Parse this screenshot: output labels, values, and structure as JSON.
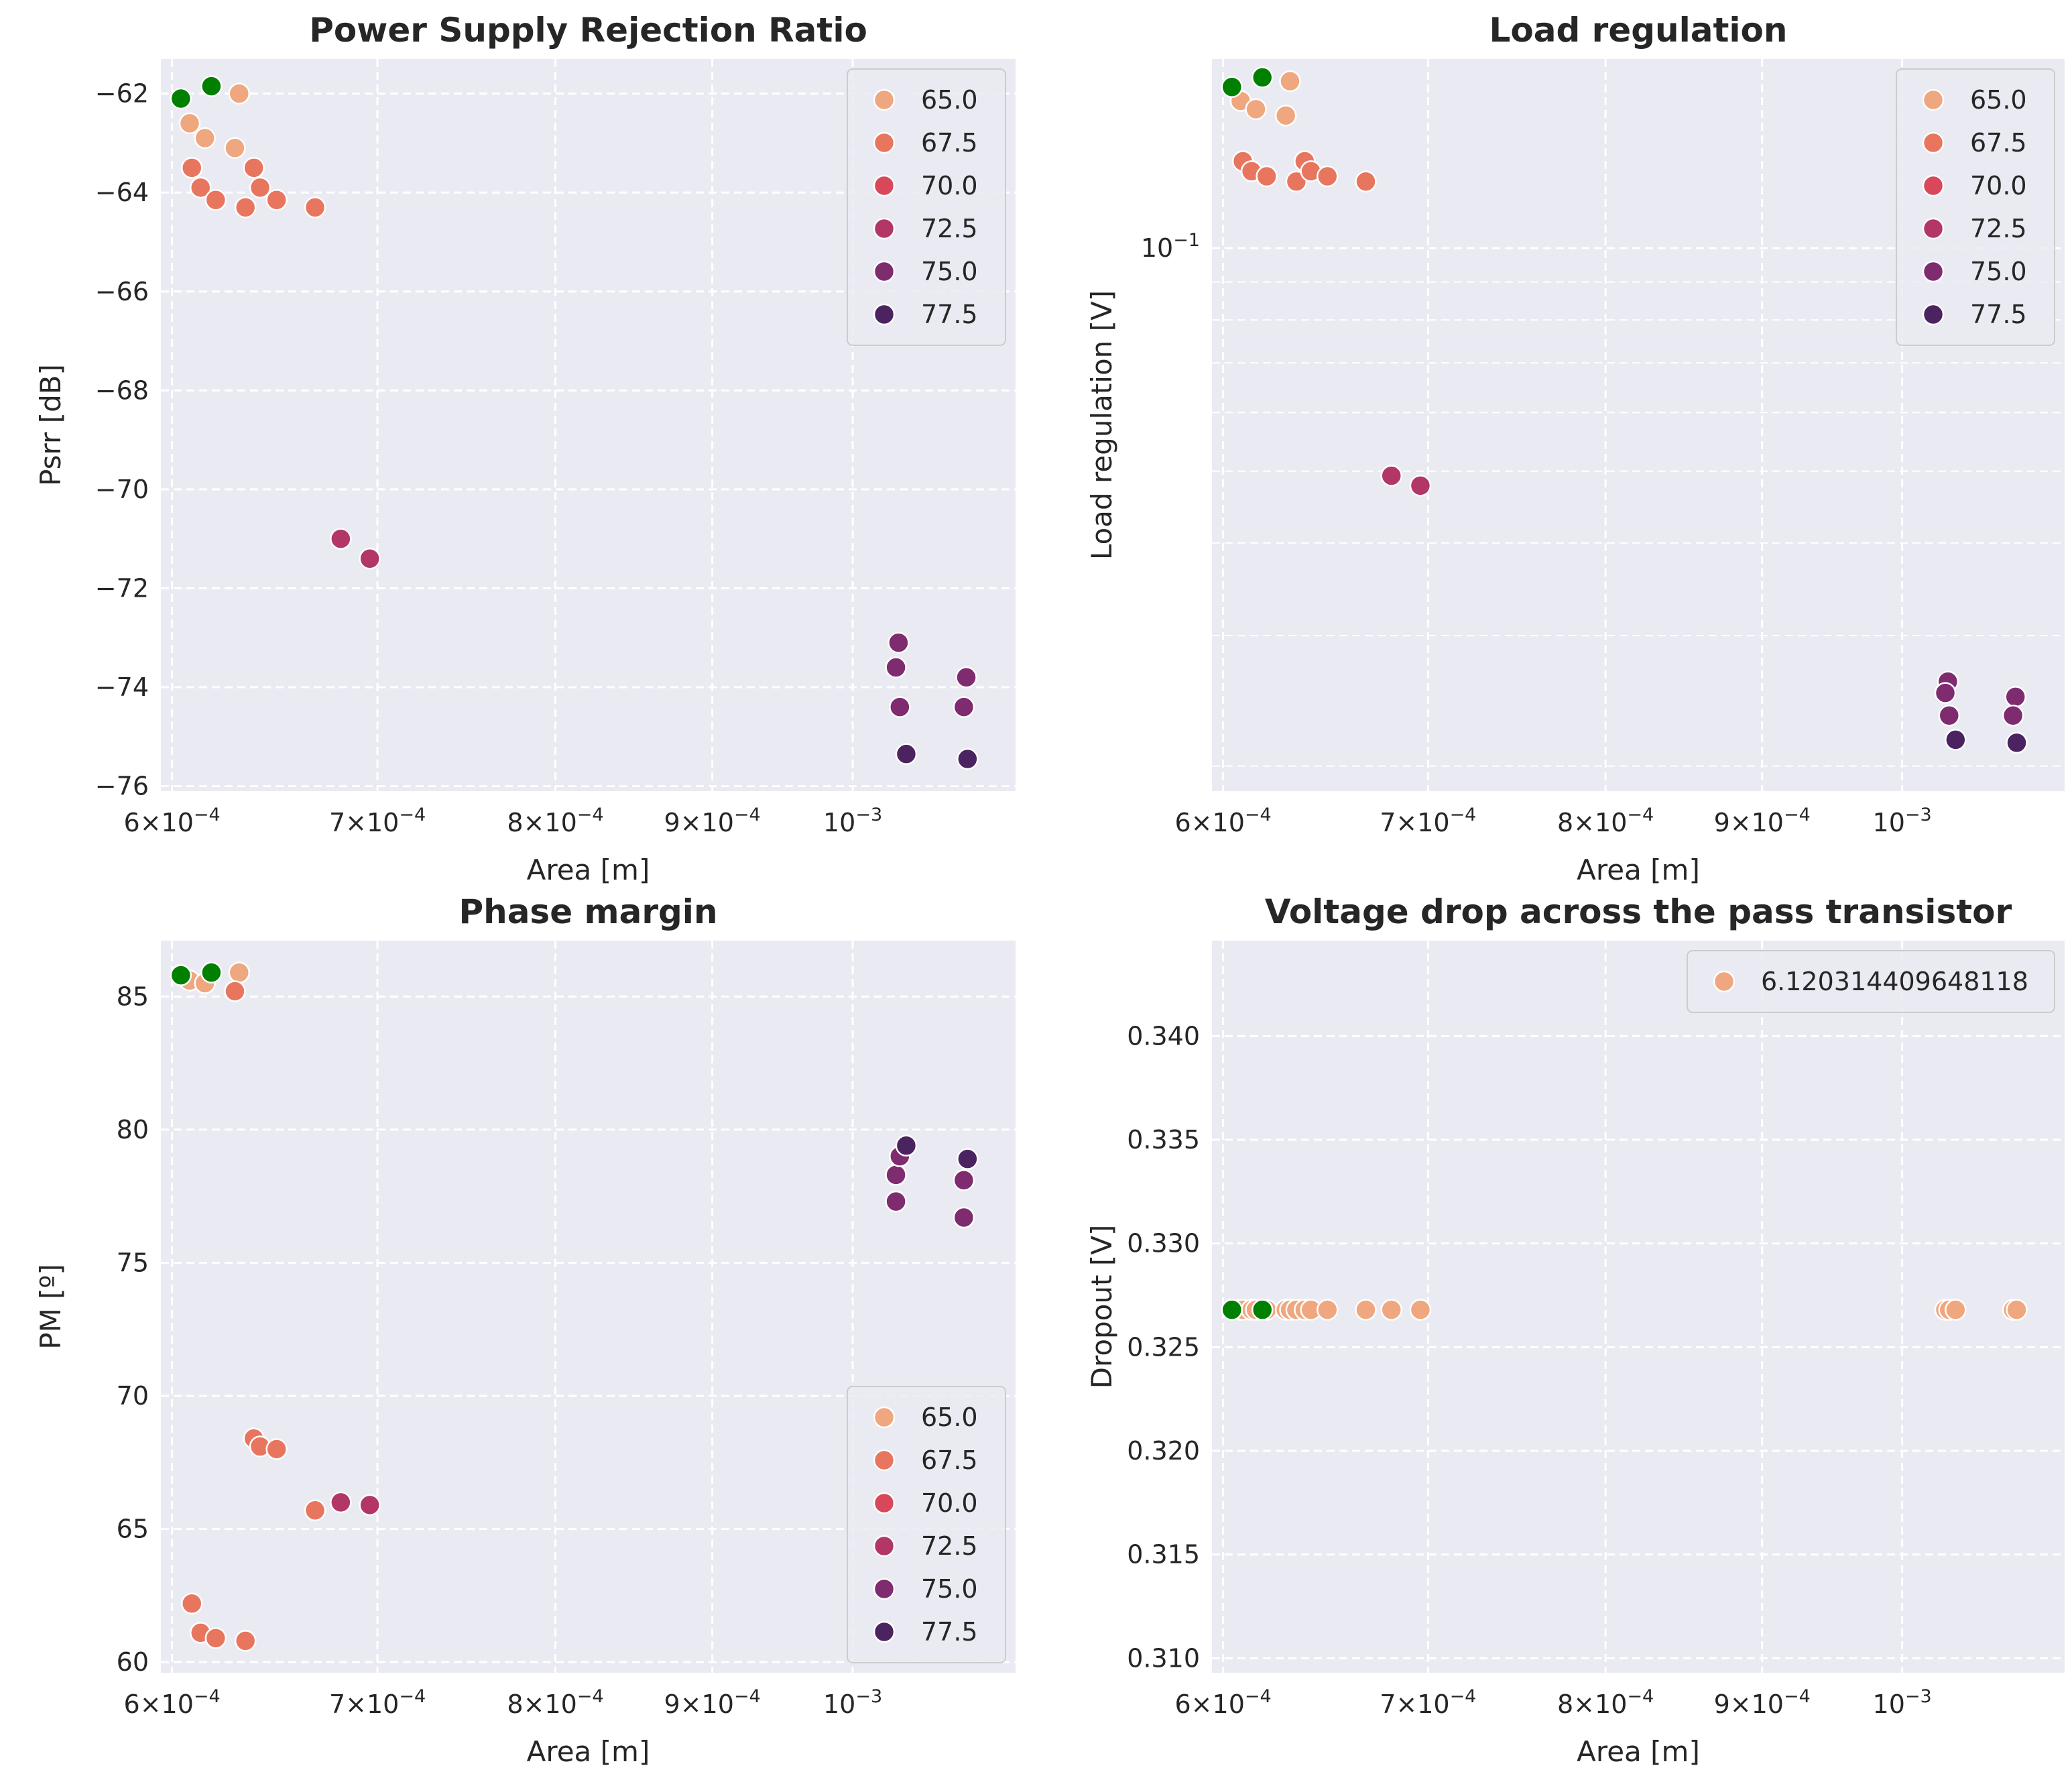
{
  "chart_data": [
    {
      "type": "scatter",
      "title": "Power Supply Rejection Ratio",
      "xlabel": "Area [m]",
      "ylabel": "Psrr [dB]",
      "xscale": "log",
      "xlim": [
        0.000595,
        0.00113
      ],
      "ylim": [
        -76.1,
        -61.3
      ],
      "xticks": [
        {
          "v": 0.0006,
          "m": "6",
          "e": "−4"
        },
        {
          "v": 0.0007,
          "m": "7",
          "e": "−4"
        },
        {
          "v": 0.0008,
          "m": "8",
          "e": "−4"
        },
        {
          "v": 0.0009,
          "m": "9",
          "e": "−4"
        },
        {
          "v": 0.001,
          "m": "",
          "e": "−3"
        }
      ],
      "yticks": [
        {
          "v": -62,
          "t": "−62"
        },
        {
          "v": -64,
          "t": "−64"
        },
        {
          "v": -66,
          "t": "−66"
        },
        {
          "v": -68,
          "t": "−68"
        },
        {
          "v": -70,
          "t": "−70"
        },
        {
          "v": -72,
          "t": "−72"
        },
        {
          "v": -74,
          "t": "−74"
        },
        {
          "v": -76,
          "t": "−76"
        }
      ],
      "grid": true,
      "legend": {
        "placement": "upper-right",
        "entries": [
          {
            "label": "65.0",
            "color": "#EFA77F"
          },
          {
            "label": "67.5",
            "color": "#E8765F"
          },
          {
            "label": "70.0",
            "color": "#D9475A"
          },
          {
            "label": "72.5",
            "color": "#B23668"
          },
          {
            "label": "75.0",
            "color": "#7F2B6F"
          },
          {
            "label": "77.5",
            "color": "#4B2360"
          }
        ]
      },
      "points": [
        {
          "x": 0.000608,
          "y": -62.6,
          "color": "#EFA77F"
        },
        {
          "x": 0.000615,
          "y": -62.9,
          "color": "#EFA77F"
        },
        {
          "x": 0.000629,
          "y": -63.1,
          "color": "#EFA77F"
        },
        {
          "x": 0.000631,
          "y": -62.0,
          "color": "#EFA77F"
        },
        {
          "x": 0.000609,
          "y": -63.5,
          "color": "#E8765F"
        },
        {
          "x": 0.000613,
          "y": -63.9,
          "color": "#E8765F"
        },
        {
          "x": 0.00062,
          "y": -64.15,
          "color": "#E8765F"
        },
        {
          "x": 0.000634,
          "y": -64.3,
          "color": "#E8765F"
        },
        {
          "x": 0.000638,
          "y": -63.5,
          "color": "#E8765F"
        },
        {
          "x": 0.000641,
          "y": -63.9,
          "color": "#E8765F"
        },
        {
          "x": 0.000649,
          "y": -64.15,
          "color": "#E8765F"
        },
        {
          "x": 0.000668,
          "y": -64.3,
          "color": "#E8765F"
        },
        {
          "x": 0.000681,
          "y": -71.0,
          "color": "#B23668"
        },
        {
          "x": 0.000696,
          "y": -71.4,
          "color": "#B23668"
        },
        {
          "x": 0.001035,
          "y": -73.1,
          "color": "#7F2B6F"
        },
        {
          "x": 0.001033,
          "y": -73.6,
          "color": "#7F2B6F"
        },
        {
          "x": 0.001036,
          "y": -74.4,
          "color": "#7F2B6F"
        },
        {
          "x": 0.001089,
          "y": -73.8,
          "color": "#7F2B6F"
        },
        {
          "x": 0.001087,
          "y": -74.4,
          "color": "#7F2B6F"
        },
        {
          "x": 0.001041,
          "y": -75.35,
          "color": "#4B2360"
        },
        {
          "x": 0.00109,
          "y": -75.45,
          "color": "#4B2360"
        },
        {
          "x": 0.000604,
          "y": -62.1,
          "color": "#008000"
        },
        {
          "x": 0.000618,
          "y": -61.85,
          "color": "#008000"
        }
      ]
    },
    {
      "type": "scatter",
      "title": "Load regulation",
      "xlabel": "Area [m]",
      "ylabel": "Load regulation [V]",
      "xscale": "log",
      "yscale": "log",
      "xlim": [
        0.000595,
        0.00113
      ],
      "ylim": [
        0.0185,
        0.18
      ],
      "xticks": [
        {
          "v": 0.0006,
          "m": "6",
          "e": "−4"
        },
        {
          "v": 0.0007,
          "m": "7",
          "e": "−4"
        },
        {
          "v": 0.0008,
          "m": "8",
          "e": "−4"
        },
        {
          "v": 0.0009,
          "m": "9",
          "e": "−4"
        },
        {
          "v": 0.001,
          "m": "",
          "e": "−3"
        }
      ],
      "yticks": [
        {
          "v": 0.1,
          "m": "10",
          "e": "−1"
        }
      ],
      "yminor": [
        0.02,
        0.03,
        0.04,
        0.05,
        0.06,
        0.07,
        0.08,
        0.09
      ],
      "grid": true,
      "legend": {
        "placement": "upper-right",
        "entries": [
          {
            "label": "65.0",
            "color": "#EFA77F"
          },
          {
            "label": "67.5",
            "color": "#E8765F"
          },
          {
            "label": "70.0",
            "color": "#D9475A"
          },
          {
            "label": "72.5",
            "color": "#B23668"
          },
          {
            "label": "75.0",
            "color": "#7F2B6F"
          },
          {
            "label": "77.5",
            "color": "#4B2360"
          }
        ]
      },
      "points": [
        {
          "x": 0.000608,
          "y": 0.158,
          "color": "#EFA77F"
        },
        {
          "x": 0.000615,
          "y": 0.154,
          "color": "#EFA77F"
        },
        {
          "x": 0.000629,
          "y": 0.151,
          "color": "#EFA77F"
        },
        {
          "x": 0.000631,
          "y": 0.168,
          "color": "#EFA77F"
        },
        {
          "x": 0.000609,
          "y": 0.131,
          "color": "#E8765F"
        },
        {
          "x": 0.000613,
          "y": 0.127,
          "color": "#E8765F"
        },
        {
          "x": 0.00062,
          "y": 0.125,
          "color": "#E8765F"
        },
        {
          "x": 0.000634,
          "y": 0.123,
          "color": "#E8765F"
        },
        {
          "x": 0.000638,
          "y": 0.131,
          "color": "#E8765F"
        },
        {
          "x": 0.000641,
          "y": 0.127,
          "color": "#E8765F"
        },
        {
          "x": 0.000649,
          "y": 0.125,
          "color": "#E8765F"
        },
        {
          "x": 0.000668,
          "y": 0.123,
          "color": "#E8765F"
        },
        {
          "x": 0.000681,
          "y": 0.0493,
          "color": "#B23668"
        },
        {
          "x": 0.000696,
          "y": 0.0478,
          "color": "#B23668"
        },
        {
          "x": 0.001035,
          "y": 0.026,
          "color": "#7F2B6F"
        },
        {
          "x": 0.001033,
          "y": 0.0251,
          "color": "#7F2B6F"
        },
        {
          "x": 0.001036,
          "y": 0.0234,
          "color": "#7F2B6F"
        },
        {
          "x": 0.001089,
          "y": 0.0248,
          "color": "#7F2B6F"
        },
        {
          "x": 0.001087,
          "y": 0.0234,
          "color": "#7F2B6F"
        },
        {
          "x": 0.001041,
          "y": 0.0217,
          "color": "#4B2360"
        },
        {
          "x": 0.00109,
          "y": 0.0215,
          "color": "#4B2360"
        },
        {
          "x": 0.000604,
          "y": 0.165,
          "color": "#008000"
        },
        {
          "x": 0.000618,
          "y": 0.17,
          "color": "#008000"
        }
      ]
    },
    {
      "type": "scatter",
      "title": "Phase margin",
      "xlabel": "Area [m]",
      "ylabel": "PM [º]",
      "xscale": "log",
      "xlim": [
        0.000595,
        0.00113
      ],
      "ylim": [
        59.6,
        87.1
      ],
      "xticks": [
        {
          "v": 0.0006,
          "m": "6",
          "e": "−4"
        },
        {
          "v": 0.0007,
          "m": "7",
          "e": "−4"
        },
        {
          "v": 0.0008,
          "m": "8",
          "e": "−4"
        },
        {
          "v": 0.0009,
          "m": "9",
          "e": "−4"
        },
        {
          "v": 0.001,
          "m": "",
          "e": "−3"
        }
      ],
      "yticks": [
        {
          "v": 60,
          "t": "60"
        },
        {
          "v": 65,
          "t": "65"
        },
        {
          "v": 70,
          "t": "70"
        },
        {
          "v": 75,
          "t": "75"
        },
        {
          "v": 80,
          "t": "80"
        },
        {
          "v": 85,
          "t": "85"
        }
      ],
      "grid": true,
      "legend": {
        "placement": "lower-right",
        "entries": [
          {
            "label": "65.0",
            "color": "#EFA77F"
          },
          {
            "label": "67.5",
            "color": "#E8765F"
          },
          {
            "label": "70.0",
            "color": "#D9475A"
          },
          {
            "label": "72.5",
            "color": "#B23668"
          },
          {
            "label": "75.0",
            "color": "#7F2B6F"
          },
          {
            "label": "77.5",
            "color": "#4B2360"
          }
        ]
      },
      "points": [
        {
          "x": 0.000608,
          "y": 85.6,
          "color": "#EFA77F"
        },
        {
          "x": 0.000615,
          "y": 85.5,
          "color": "#EFA77F"
        },
        {
          "x": 0.000631,
          "y": 85.9,
          "color": "#EFA77F"
        },
        {
          "x": 0.000629,
          "y": 85.2,
          "color": "#E8765F"
        },
        {
          "x": 0.000609,
          "y": 62.2,
          "color": "#E8765F"
        },
        {
          "x": 0.000613,
          "y": 61.1,
          "color": "#E8765F"
        },
        {
          "x": 0.00062,
          "y": 60.9,
          "color": "#E8765F"
        },
        {
          "x": 0.000634,
          "y": 60.8,
          "color": "#E8765F"
        },
        {
          "x": 0.000638,
          "y": 68.4,
          "color": "#E8765F"
        },
        {
          "x": 0.000641,
          "y": 68.1,
          "color": "#E8765F"
        },
        {
          "x": 0.000649,
          "y": 68.0,
          "color": "#E8765F"
        },
        {
          "x": 0.000668,
          "y": 65.7,
          "color": "#E8765F"
        },
        {
          "x": 0.000681,
          "y": 66.0,
          "color": "#B23668"
        },
        {
          "x": 0.000696,
          "y": 65.9,
          "color": "#B23668"
        },
        {
          "x": 0.001033,
          "y": 78.3,
          "color": "#7F2B6F"
        },
        {
          "x": 0.001033,
          "y": 77.3,
          "color": "#7F2B6F"
        },
        {
          "x": 0.001036,
          "y": 79.0,
          "color": "#7F2B6F"
        },
        {
          "x": 0.001087,
          "y": 78.1,
          "color": "#7F2B6F"
        },
        {
          "x": 0.001087,
          "y": 76.7,
          "color": "#7F2B6F"
        },
        {
          "x": 0.001041,
          "y": 79.4,
          "color": "#4B2360"
        },
        {
          "x": 0.00109,
          "y": 78.9,
          "color": "#4B2360"
        },
        {
          "x": 0.000604,
          "y": 85.8,
          "color": "#008000"
        },
        {
          "x": 0.000618,
          "y": 85.9,
          "color": "#008000"
        }
      ]
    },
    {
      "type": "scatter",
      "title": "Voltage drop across the pass transistor",
      "xlabel": "Area [m]",
      "ylabel": "Dropout [V]",
      "xscale": "log",
      "xlim": [
        0.000595,
        0.00113
      ],
      "ylim": [
        0.3093,
        0.3446
      ],
      "xticks": [
        {
          "v": 0.0006,
          "m": "6",
          "e": "−4"
        },
        {
          "v": 0.0007,
          "m": "7",
          "e": "−4"
        },
        {
          "v": 0.0008,
          "m": "8",
          "e": "−4"
        },
        {
          "v": 0.0009,
          "m": "9",
          "e": "−4"
        },
        {
          "v": 0.001,
          "m": "",
          "e": "−3"
        }
      ],
      "yticks": [
        {
          "v": 0.31,
          "t": "0.310"
        },
        {
          "v": 0.315,
          "t": "0.315"
        },
        {
          "v": 0.32,
          "t": "0.320"
        },
        {
          "v": 0.325,
          "t": "0.325"
        },
        {
          "v": 0.33,
          "t": "0.330"
        },
        {
          "v": 0.335,
          "t": "0.335"
        },
        {
          "v": 0.34,
          "t": "0.340"
        }
      ],
      "grid": true,
      "legend": {
        "placement": "upper-right",
        "entries": [
          {
            "label": "6.120314409648118",
            "color": "#EFA77F"
          }
        ]
      },
      "points": [
        {
          "x": 0.000608,
          "y": 0.3268,
          "color": "#EFA77F"
        },
        {
          "x": 0.000609,
          "y": 0.3268,
          "color": "#EFA77F"
        },
        {
          "x": 0.000613,
          "y": 0.3268,
          "color": "#EFA77F"
        },
        {
          "x": 0.000615,
          "y": 0.3268,
          "color": "#EFA77F"
        },
        {
          "x": 0.00062,
          "y": 0.3268,
          "color": "#EFA77F"
        },
        {
          "x": 0.000629,
          "y": 0.3268,
          "color": "#EFA77F"
        },
        {
          "x": 0.000631,
          "y": 0.3268,
          "color": "#EFA77F"
        },
        {
          "x": 0.000634,
          "y": 0.3268,
          "color": "#EFA77F"
        },
        {
          "x": 0.000638,
          "y": 0.3268,
          "color": "#EFA77F"
        },
        {
          "x": 0.000641,
          "y": 0.3268,
          "color": "#EFA77F"
        },
        {
          "x": 0.000649,
          "y": 0.3268,
          "color": "#EFA77F"
        },
        {
          "x": 0.000668,
          "y": 0.3268,
          "color": "#EFA77F"
        },
        {
          "x": 0.000681,
          "y": 0.3268,
          "color": "#EFA77F"
        },
        {
          "x": 0.000696,
          "y": 0.3268,
          "color": "#EFA77F"
        },
        {
          "x": 0.001033,
          "y": 0.3268,
          "color": "#EFA77F"
        },
        {
          "x": 0.001036,
          "y": 0.3268,
          "color": "#EFA77F"
        },
        {
          "x": 0.001041,
          "y": 0.3268,
          "color": "#EFA77F"
        },
        {
          "x": 0.001087,
          "y": 0.3268,
          "color": "#EFA77F"
        },
        {
          "x": 0.00109,
          "y": 0.3268,
          "color": "#EFA77F"
        },
        {
          "x": 0.000604,
          "y": 0.3268,
          "color": "#008000"
        },
        {
          "x": 0.000618,
          "y": 0.3268,
          "color": "#008000"
        }
      ]
    }
  ]
}
